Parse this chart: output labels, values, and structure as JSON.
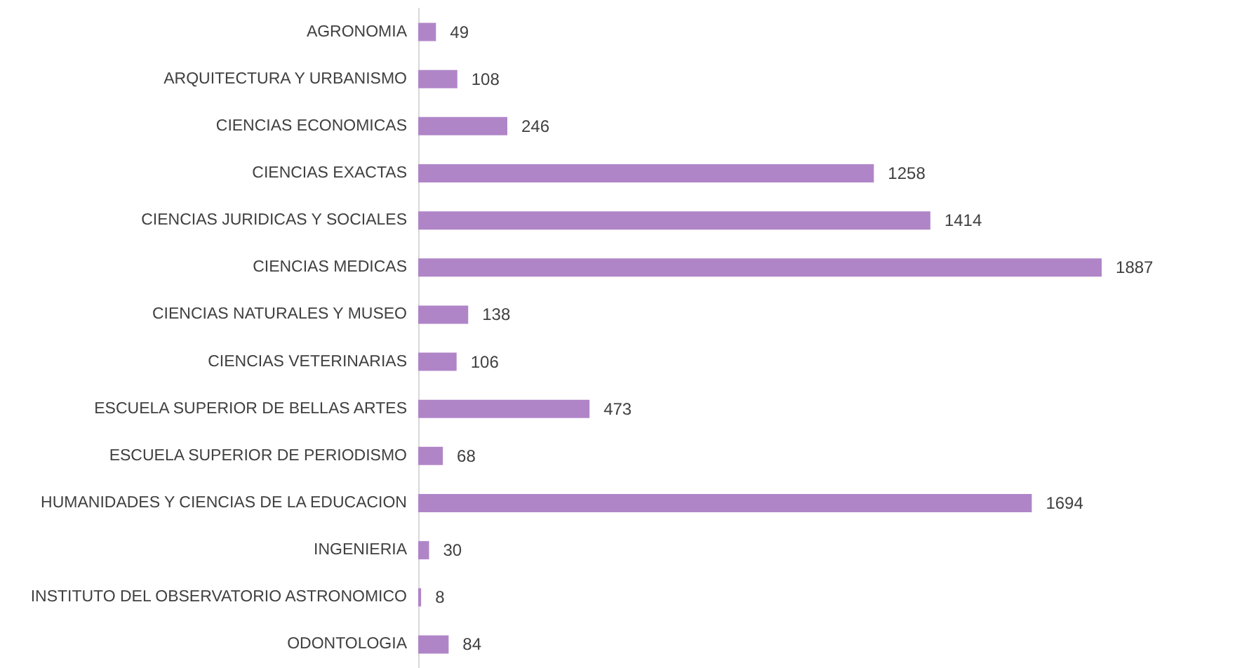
{
  "chart_data": {
    "type": "bar",
    "orientation": "horizontal",
    "data_labels": true,
    "grid": false,
    "categories": [
      "AGRONOMIA",
      "ARQUITECTURA Y URBANISMO",
      "CIENCIAS ECONOMICAS",
      "CIENCIAS EXACTAS",
      "CIENCIAS JURIDICAS Y SOCIALES",
      "CIENCIAS MEDICAS",
      "CIENCIAS NATURALES Y MUSEO",
      "CIENCIAS VETERINARIAS",
      "ESCUELA SUPERIOR DE BELLAS ARTES",
      "ESCUELA SUPERIOR DE PERIODISMO",
      "HUMANIDADES Y CIENCIAS DE LA EDUCACION",
      "INGENIERIA",
      "INSTITUTO DEL OBSERVATORIO ASTRONOMICO",
      "ODONTOLOGIA"
    ],
    "values": [
      49,
      108,
      246,
      1258,
      1414,
      1887,
      138,
      106,
      473,
      68,
      1694,
      30,
      8,
      84
    ],
    "color": "#b085c8"
  }
}
